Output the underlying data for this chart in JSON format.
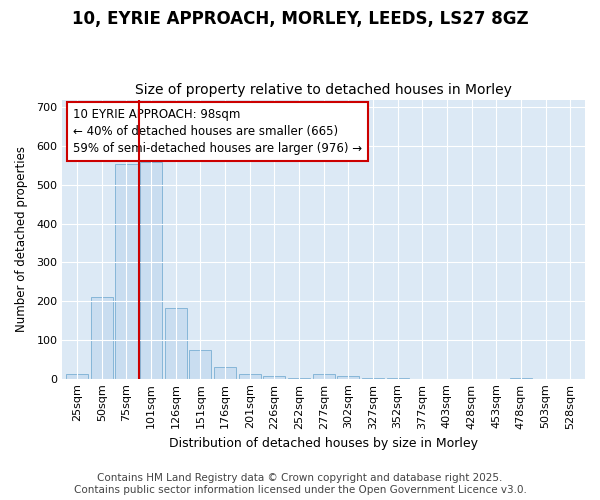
{
  "title1": "10, EYRIE APPROACH, MORLEY, LEEDS, LS27 8GZ",
  "title2": "Size of property relative to detached houses in Morley",
  "xlabel": "Distribution of detached houses by size in Morley",
  "ylabel": "Number of detached properties",
  "categories": [
    "25sqm",
    "50sqm",
    "75sqm",
    "101sqm",
    "126sqm",
    "151sqm",
    "176sqm",
    "201sqm",
    "226sqm",
    "252sqm",
    "277sqm",
    "302sqm",
    "327sqm",
    "352sqm",
    "377sqm",
    "403sqm",
    "428sqm",
    "453sqm",
    "478sqm",
    "503sqm",
    "528sqm"
  ],
  "values": [
    12,
    210,
    555,
    560,
    182,
    75,
    30,
    12,
    7,
    3,
    12,
    7,
    3,
    2,
    0,
    0,
    0,
    0,
    2,
    0,
    0
  ],
  "bar_color": "#c9ddf0",
  "bar_edge_color": "#7aafd4",
  "property_line_color": "#cc0000",
  "annotation_text": "10 EYRIE APPROACH: 98sqm\n← 40% of detached houses are smaller (665)\n59% of semi-detached houses are larger (976) →",
  "annotation_box_color": "#ffffff",
  "annotation_box_edge_color": "#cc0000",
  "ylim": [
    0,
    720
  ],
  "yticks": [
    0,
    100,
    200,
    300,
    400,
    500,
    600,
    700
  ],
  "fig_bg_color": "#ffffff",
  "plot_bg_color": "#dce9f5",
  "grid_color": "#ffffff",
  "footer_text": "Contains HM Land Registry data © Crown copyright and database right 2025.\nContains public sector information licensed under the Open Government Licence v3.0.",
  "title1_fontsize": 12,
  "title2_fontsize": 10,
  "xlabel_fontsize": 9,
  "ylabel_fontsize": 8.5,
  "tick_fontsize": 8,
  "annotation_fontsize": 8.5,
  "footer_fontsize": 7.5
}
